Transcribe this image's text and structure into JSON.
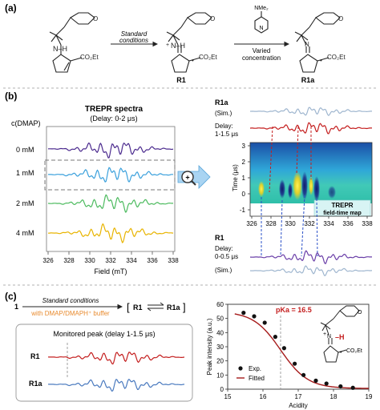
{
  "panels": {
    "a": {
      "label": "(a)",
      "arrow1": {
        "top": "Standard",
        "bottom": "conditions"
      },
      "arrow2": {
        "reagent": "NMe₂",
        "top": "Varied",
        "bottom": "concentration"
      },
      "nh": "N–H",
      "ester": "CO₂Et",
      "cation_plus": "+",
      "radical_dot": "•",
      "compound1": "R1",
      "compound2": "R1a"
    },
    "b": {
      "label": "(b)",
      "spectra_title": "TREPR spectra",
      "spectra_subtitle": "(Delay: 0-2 μs)",
      "cdmap": "c(DMAP)",
      "rows": [
        "0 mM",
        "1 mM",
        "2 mM",
        "4 mM"
      ],
      "xlabel": "Field (mT)",
      "xticks": [
        "326",
        "328",
        "330",
        "332",
        "334",
        "336",
        "338"
      ],
      "magnifier_plus": "+",
      "r1a_label": "R1a",
      "sim_top": "(Sim.)",
      "delay_top_1": "Delay:",
      "delay_top_2": "1-1.5 μs",
      "map_ylabel": "Time (μs)",
      "map_yticks": [
        "3",
        "2",
        "1",
        "0",
        "-1"
      ],
      "map_xticks": [
        "326",
        "328",
        "330",
        "332",
        "334",
        "336",
        "338"
      ],
      "map_caption_1": "TREPR",
      "map_caption_2": "field-time map",
      "r1_label": "R1",
      "delay_bottom_1": "Delay:",
      "delay_bottom_2": "0-0.5 μs",
      "sim_bottom": "(Sim.)"
    },
    "c": {
      "label": "(c)",
      "start_num": "1",
      "arrow_top": "Standard conditions",
      "arrow_bottom": "with DMAP/DMAPH⁺ buffer",
      "eq_left": "R1",
      "eq_right": "R1a",
      "box_title": "Monitored peak (delay 1-1.5 μs)",
      "trace1": "R1",
      "trace2": "R1a"
    }
  },
  "colors": {
    "purple": "#4b2a8e",
    "sky": "#3aa0dc",
    "green": "#4dbb5f",
    "yellow": "#e8b400",
    "red": "#c41e1e",
    "steel": "#4a7abf",
    "lightsteel": "#9fb6cf",
    "orange": "#e88a2d",
    "fit": "#a61b1b"
  },
  "chart_data": {
    "type": "scatter",
    "ylabel": "Peak intensity (a.u.)",
    "xlabel": "Acidity",
    "xlim": [
      15,
      19
    ],
    "ylim": [
      0,
      60
    ],
    "xticks": [
      "15",
      "16",
      "17",
      "18",
      "19"
    ],
    "yticks": [
      "0",
      "10",
      "20",
      "30",
      "40",
      "50",
      "60"
    ],
    "pka_text": "pKa = 16.5",
    "pka": 16.5,
    "series": [
      {
        "name": "Exp.",
        "x": [
          15.45,
          15.75,
          16.05,
          16.35,
          16.6,
          16.9,
          17.15,
          17.5,
          17.8,
          18.2,
          18.55
        ],
        "y": [
          54,
          51.5,
          47,
          37,
          29,
          18,
          10,
          6,
          4,
          2,
          1
        ]
      },
      {
        "name": "Fitted",
        "kind": "sigmoid",
        "top": 55,
        "bottom": 0.5,
        "x0": 16.5,
        "k": 2.6
      }
    ]
  }
}
